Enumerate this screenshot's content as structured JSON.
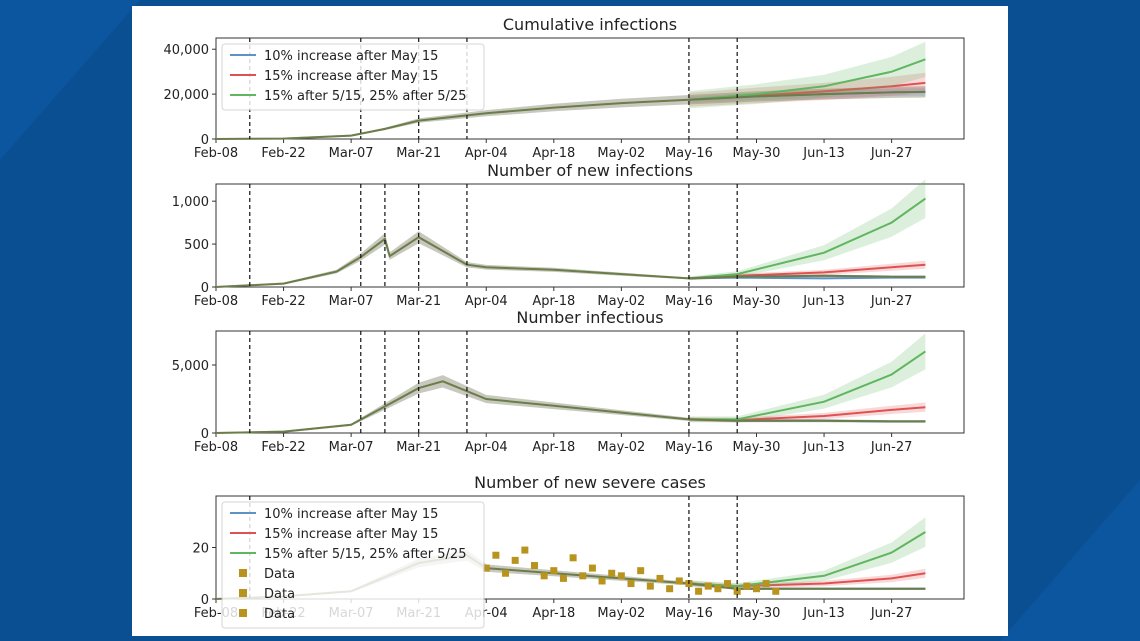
{
  "chart_data": [
    {
      "type": "line",
      "title": "Cumulative infections",
      "yticks": [
        0,
        20000,
        40000
      ],
      "ytick_labels": [
        "0",
        "20,000",
        "40,000"
      ],
      "ylim": [
        0,
        45000
      ],
      "xtick_labels": [
        "Feb-08",
        "Feb-22",
        "Mar-07",
        "Mar-21",
        "Apr-04",
        "Apr-18",
        "May-02",
        "May-16",
        "May-30",
        "Jun-13",
        "Jun-27"
      ],
      "vlines": [
        "Feb-15",
        "Mar-09",
        "Mar-21",
        "Mar-31",
        "May-16",
        "May-26"
      ],
      "legend": {
        "position": "upper-left",
        "entries": [
          "10% increase after May 15",
          "15% increase after May 15",
          "15% after 5/15, 25% after 5/25"
        ]
      },
      "x": [
        "Feb-08",
        "Feb-22",
        "Mar-07",
        "Mar-14",
        "Mar-21",
        "Apr-04",
        "Apr-18",
        "May-02",
        "May-16",
        "May-30",
        "Jun-13",
        "Jun-27",
        "Jul-04"
      ],
      "base": [
        0,
        200,
        1500,
        4500,
        8200,
        11500,
        14000,
        16000,
        17500,
        19000,
        20000,
        20800,
        21000
      ],
      "series": [
        {
          "name": "10% increase after May 15",
          "values": [
            null,
            null,
            null,
            null,
            null,
            null,
            null,
            null,
            17500,
            19000,
            20000,
            20800,
            21000
          ]
        },
        {
          "name": "15% increase after May 15",
          "values": [
            null,
            null,
            null,
            null,
            null,
            null,
            null,
            null,
            17500,
            19400,
            21200,
            23500,
            25000
          ]
        },
        {
          "name": "15% after 5/15, 25% after 5/25",
          "values": [
            null,
            null,
            null,
            null,
            null,
            null,
            null,
            null,
            17500,
            20000,
            23500,
            30000,
            35500
          ]
        }
      ]
    },
    {
      "type": "line",
      "title": "Number of new infections",
      "yticks": [
        0,
        500,
        1000
      ],
      "ytick_labels": [
        "0",
        "500",
        "1,000"
      ],
      "ylim": [
        0,
        1200
      ],
      "xtick_labels": [
        "Feb-08",
        "Feb-22",
        "Mar-07",
        "Mar-21",
        "Apr-04",
        "Apr-18",
        "May-02",
        "May-16",
        "May-30",
        "Jun-13",
        "Jun-27"
      ],
      "vlines": [
        "Feb-15",
        "Mar-09",
        "Mar-14",
        "Mar-21",
        "Mar-31",
        "May-16",
        "May-26"
      ],
      "x": [
        "Feb-08",
        "Feb-22",
        "Mar-04",
        "Mar-09",
        "Mar-14",
        "Mar-15",
        "Mar-21",
        "Mar-31",
        "Apr-04",
        "Apr-18",
        "May-02",
        "May-16",
        "May-26",
        "Jun-13",
        "Jun-27",
        "Jul-04"
      ],
      "base": [
        0,
        40,
        180,
        350,
        560,
        360,
        580,
        260,
        230,
        200,
        150,
        100,
        120,
        130,
        120,
        120
      ],
      "series": [
        {
          "name": "10% increase after May 15",
          "values": [
            null,
            null,
            null,
            null,
            null,
            null,
            null,
            null,
            null,
            null,
            null,
            100,
            110,
            100,
            110,
            110
          ]
        },
        {
          "name": "15% increase after May 15",
          "values": [
            null,
            null,
            null,
            null,
            null,
            null,
            null,
            null,
            null,
            null,
            null,
            100,
            130,
            170,
            230,
            260
          ]
        },
        {
          "name": "15% after 5/15, 25% after 5/25",
          "values": [
            null,
            null,
            null,
            null,
            null,
            null,
            null,
            null,
            null,
            null,
            null,
            100,
            150,
            400,
            750,
            1030
          ]
        }
      ]
    },
    {
      "type": "line",
      "title": "Number infectious",
      "yticks": [
        0,
        5000
      ],
      "ytick_labels": [
        "0",
        "5,000"
      ],
      "ylim": [
        0,
        7500
      ],
      "xtick_labels": [
        "Feb-08",
        "Feb-22",
        "Mar-07",
        "Mar-21",
        "Apr-04",
        "Apr-18",
        "May-02",
        "May-16",
        "May-30",
        "Jun-13",
        "Jun-27"
      ],
      "vlines": [
        "Feb-15",
        "Mar-09",
        "Mar-14",
        "Mar-21",
        "Mar-31",
        "May-16",
        "May-26"
      ],
      "x": [
        "Feb-08",
        "Feb-22",
        "Mar-07",
        "Mar-21",
        "Mar-26",
        "Apr-04",
        "Apr-18",
        "May-02",
        "May-16",
        "May-26",
        "Jun-13",
        "Jun-27",
        "Jul-04"
      ],
      "base": [
        0,
        100,
        600,
        3300,
        3800,
        2500,
        2000,
        1500,
        1000,
        900,
        900,
        850,
        850
      ],
      "series": [
        {
          "name": "10% increase after May 15",
          "values": [
            null,
            null,
            null,
            null,
            null,
            null,
            null,
            null,
            1000,
            900,
            900,
            850,
            850
          ]
        },
        {
          "name": "15% increase after May 15",
          "values": [
            null,
            null,
            null,
            null,
            null,
            null,
            null,
            null,
            1000,
            950,
            1250,
            1700,
            1900
          ]
        },
        {
          "name": "15% after 5/15, 25% after 5/25",
          "values": [
            null,
            null,
            null,
            null,
            null,
            null,
            null,
            null,
            1000,
            1000,
            2300,
            4300,
            6000
          ]
        }
      ]
    },
    {
      "type": "line",
      "title": "Number of new severe cases",
      "yticks": [
        0,
        20
      ],
      "ytick_labels": [
        "0",
        "20"
      ],
      "ylim": [
        0,
        40
      ],
      "xtick_labels": [
        "Feb-08",
        "Feb-22",
        "Mar-07",
        "Mar-21",
        "Apr-04",
        "Apr-18",
        "May-02",
        "May-16",
        "May-30",
        "Jun-13",
        "Jun-27"
      ],
      "vlines": [
        "Feb-15",
        "May-16",
        "May-26"
      ],
      "legend": {
        "position": "upper-left",
        "entries": [
          "10% increase after May 15",
          "15% increase after May 15",
          "15% after 5/15, 25% after 5/25",
          "Data",
          "Data",
          "Data"
        ]
      },
      "x": [
        "Feb-08",
        "Feb-22",
        "Mar-07",
        "Mar-21",
        "Mar-31",
        "Apr-04",
        "Apr-18",
        "May-02",
        "May-16",
        "May-26",
        "Jun-13",
        "Jun-27",
        "Jul-04"
      ],
      "base": [
        0,
        1,
        3,
        14,
        17,
        12,
        10,
        8,
        6,
        4,
        4,
        4,
        4
      ],
      "series": [
        {
          "name": "10% increase after May 15",
          "values": [
            null,
            null,
            null,
            null,
            null,
            null,
            null,
            null,
            6,
            4,
            4,
            4,
            4
          ]
        },
        {
          "name": "15% increase after May 15",
          "values": [
            null,
            null,
            null,
            null,
            null,
            null,
            null,
            null,
            6,
            5,
            6,
            8,
            10
          ]
        },
        {
          "name": "15% after 5/15, 25% after 5/25",
          "values": [
            null,
            null,
            null,
            null,
            null,
            null,
            null,
            null,
            6,
            5,
            9,
            18,
            26
          ]
        }
      ],
      "points": [
        {
          "x": "Apr-04",
          "y": 12
        },
        {
          "x": "Apr-06",
          "y": 17
        },
        {
          "x": "Apr-08",
          "y": 10
        },
        {
          "x": "Apr-10",
          "y": 15
        },
        {
          "x": "Apr-12",
          "y": 19
        },
        {
          "x": "Apr-14",
          "y": 13
        },
        {
          "x": "Apr-16",
          "y": 9
        },
        {
          "x": "Apr-18",
          "y": 11
        },
        {
          "x": "Apr-20",
          "y": 8
        },
        {
          "x": "Apr-22",
          "y": 16
        },
        {
          "x": "Apr-24",
          "y": 9
        },
        {
          "x": "Apr-26",
          "y": 12
        },
        {
          "x": "Apr-28",
          "y": 7
        },
        {
          "x": "Apr-30",
          "y": 10
        },
        {
          "x": "May-02",
          "y": 9
        },
        {
          "x": "May-04",
          "y": 6
        },
        {
          "x": "May-06",
          "y": 11
        },
        {
          "x": "May-08",
          "y": 5
        },
        {
          "x": "May-10",
          "y": 8
        },
        {
          "x": "May-12",
          "y": 4
        },
        {
          "x": "May-14",
          "y": 7
        },
        {
          "x": "May-16",
          "y": 6
        },
        {
          "x": "May-18",
          "y": 3
        },
        {
          "x": "May-20",
          "y": 5
        },
        {
          "x": "May-22",
          "y": 4
        },
        {
          "x": "May-24",
          "y": 6
        },
        {
          "x": "May-26",
          "y": 3
        },
        {
          "x": "May-28",
          "y": 5
        },
        {
          "x": "May-30",
          "y": 4
        },
        {
          "x": "Jun-01",
          "y": 6
        },
        {
          "x": "Jun-03",
          "y": 3
        }
      ]
    }
  ],
  "colors": {
    "blue": "#5f93c6",
    "red": "#e05252",
    "green": "#5fb65f",
    "base": "#6b7d4a",
    "band": "#9a9a88",
    "data": "#b8941e",
    "frame_bg": "#0b4f93"
  }
}
